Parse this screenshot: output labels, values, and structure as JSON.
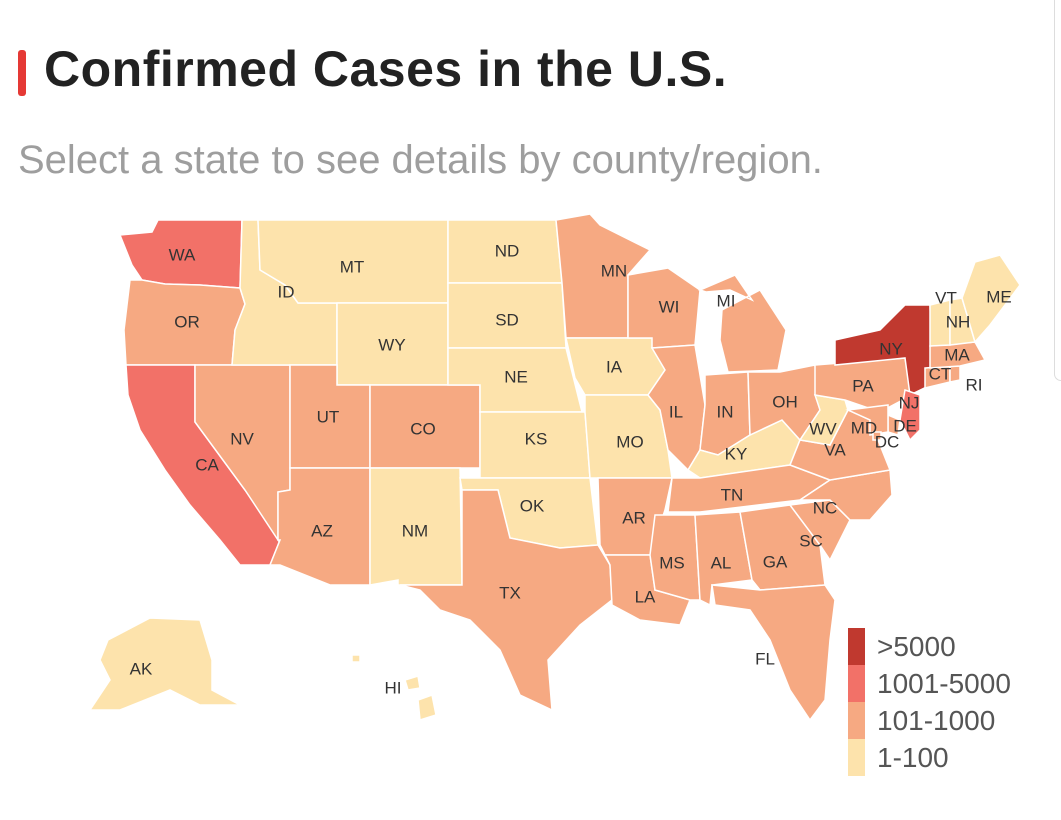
{
  "header": {
    "title": "Confirmed Cases in the U.S.",
    "subtitle": "Select a state to see details by county/region."
  },
  "colors": {
    "accent": "#e53935",
    ">5000": "#c0392f",
    "1001-5000": "#f27168",
    "101-1000": "#f6a982",
    "1-100": "#fde3ac"
  },
  "legend": [
    {
      "label": ">5000",
      "color": "#c0392f"
    },
    {
      "label": "1001-5000",
      "color": "#f27168"
    },
    {
      "label": "101-1000",
      "color": "#f6a982"
    },
    {
      "label": "1-100",
      "color": "#fde3ac"
    }
  ],
  "states": {
    "WA": "1001-5000",
    "OR": "101-1000",
    "CA": "1001-5000",
    "NV": "101-1000",
    "ID": "1-100",
    "MT": "1-100",
    "WY": "1-100",
    "UT": "101-1000",
    "AZ": "101-1000",
    "CO": "101-1000",
    "NM": "1-100",
    "ND": "1-100",
    "SD": "1-100",
    "NE": "1-100",
    "KS": "1-100",
    "OK": "1-100",
    "TX": "101-1000",
    "MN": "101-1000",
    "IA": "1-100",
    "MO": "1-100",
    "AR": "101-1000",
    "LA": "101-1000",
    "WI": "101-1000",
    "IL": "101-1000",
    "MS": "101-1000",
    "MI": "101-1000",
    "IN": "101-1000",
    "KY": "1-100",
    "TN": "101-1000",
    "AL": "101-1000",
    "OH": "101-1000",
    "GA": "101-1000",
    "FL": "101-1000",
    "SC": "101-1000",
    "NC": "101-1000",
    "VA": "101-1000",
    "WV": "1-100",
    "PA": "101-1000",
    "NY": ">5000",
    "NJ": "1001-5000",
    "DE": "101-1000",
    "MD": "101-1000",
    "DC": "101-1000",
    "CT": "101-1000",
    "RI": "101-1000",
    "MA": "101-1000",
    "VT": "1-100",
    "NH": "1-100",
    "ME": "1-100",
    "AK": "1-100",
    "HI": "1-100"
  }
}
